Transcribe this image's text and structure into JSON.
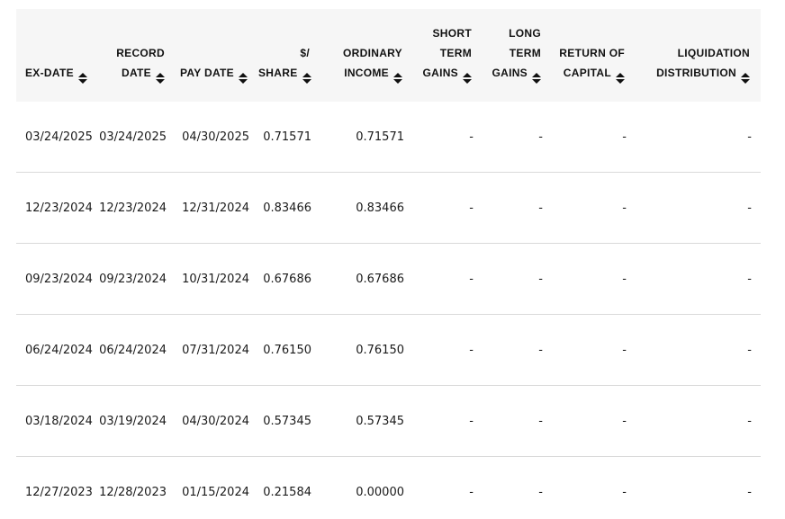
{
  "colors": {
    "header_background": "#f6f6f6",
    "header_text": "#111111",
    "body_text": "#1a1a1a",
    "row_divider": "#d9d9d9",
    "page_background": "#ffffff"
  },
  "icons": {
    "sort": "sort-arrows-icon (up and down solid triangles)"
  },
  "table": {
    "columns": [
      {
        "id": "ex-date",
        "label": "EX-DATE",
        "lines": [
          "EX-DATE"
        ],
        "sortable": true
      },
      {
        "id": "record-date",
        "label": "RECORD DATE",
        "lines": [
          "RECORD",
          "DATE"
        ],
        "sortable": true
      },
      {
        "id": "pay-date",
        "label": "PAY DATE",
        "lines": [
          "PAY DATE"
        ],
        "sortable": true
      },
      {
        "id": "share",
        "label": "$/SHARE",
        "lines": [
          "$/",
          "SHARE"
        ],
        "sortable": true
      },
      {
        "id": "ordinary-income",
        "label": "ORDINARY INCOME",
        "lines": [
          "ORDINARY",
          "INCOME"
        ],
        "sortable": true
      },
      {
        "id": "short-term-gains",
        "label": "SHORT TERM GAINS",
        "lines": [
          "SHORT",
          "TERM",
          "GAINS"
        ],
        "sortable": true
      },
      {
        "id": "long-term-gains",
        "label": "LONG TERM GAINS",
        "lines": [
          "LONG",
          "TERM",
          "GAINS"
        ],
        "sortable": true
      },
      {
        "id": "return-of-capital",
        "label": "RETURN OF CAPITAL",
        "lines": [
          "RETURN OF",
          "CAPITAL"
        ],
        "sortable": true
      },
      {
        "id": "liquidation-distribution",
        "label": "LIQUIDATION DISTRIBUTION",
        "lines": [
          "LIQUIDATION",
          "DISTRIBUTION"
        ],
        "sortable": true
      }
    ],
    "rows": [
      [
        "03/24/2025",
        "03/24/2025",
        "04/30/2025",
        "0.71571",
        "0.71571",
        "-",
        "-",
        "-",
        "-"
      ],
      [
        "12/23/2024",
        "12/23/2024",
        "12/31/2024",
        "0.83466",
        "0.83466",
        "-",
        "-",
        "-",
        "-"
      ],
      [
        "09/23/2024",
        "09/23/2024",
        "10/31/2024",
        "0.67686",
        "0.67686",
        "-",
        "-",
        "-",
        "-"
      ],
      [
        "06/24/2024",
        "06/24/2024",
        "07/31/2024",
        "0.76150",
        "0.76150",
        "-",
        "-",
        "-",
        "-"
      ],
      [
        "03/18/2024",
        "03/19/2024",
        "04/30/2024",
        "0.57345",
        "0.57345",
        "-",
        "-",
        "-",
        "-"
      ],
      [
        "12/27/2023",
        "12/28/2023",
        "01/15/2024",
        "0.21584",
        "0.00000",
        "-",
        "-",
        "-",
        "-"
      ]
    ]
  }
}
